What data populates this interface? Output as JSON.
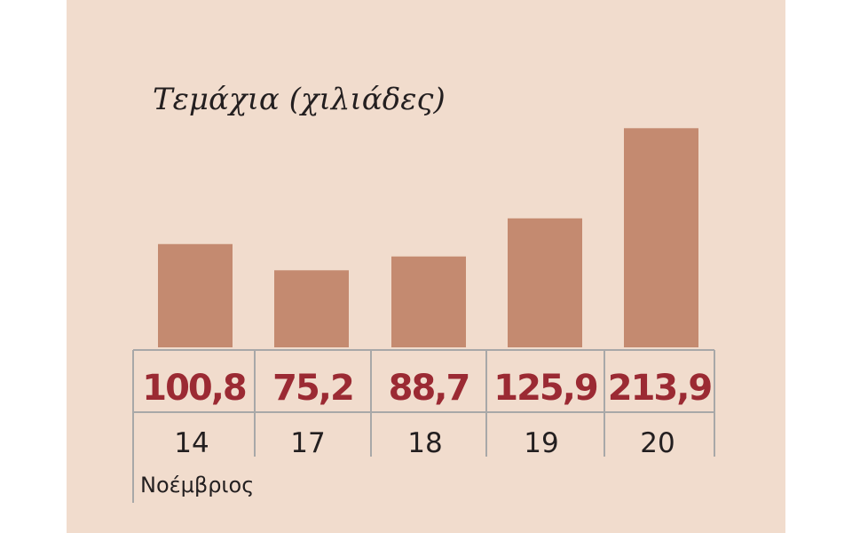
{
  "chart_data": {
    "type": "bar",
    "title": "Τεμάχια (χιλιάδες)",
    "categories": [
      "14",
      "17",
      "18",
      "19",
      "20"
    ],
    "values": [
      100.8,
      75.2,
      88.7,
      125.9,
      213.9
    ],
    "value_labels": [
      "100,8",
      "75,2",
      "88,7",
      "125,9",
      "213,9"
    ],
    "xlabel": "Νοέμβριος",
    "colors": {
      "bar": "#c48a70",
      "value_text": "#9b2a33",
      "grid": "#a8a8a8",
      "background": "#f1dccd"
    }
  }
}
